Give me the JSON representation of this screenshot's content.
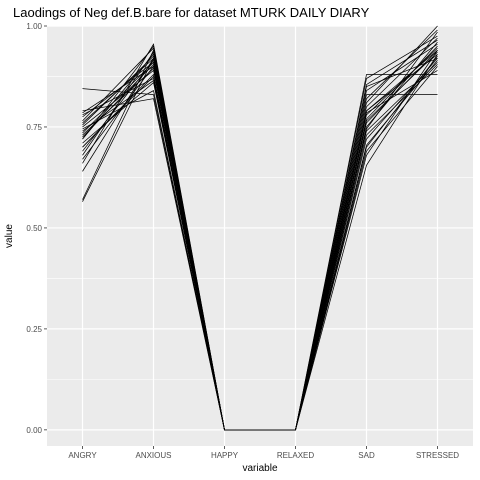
{
  "chart_data": {
    "type": "line",
    "title": "Laodings of Neg def.B.bare for dataset MTURK DAILY DIARY",
    "xlabel": "variable",
    "ylabel": "value",
    "categories": [
      "ANGRY",
      "ANXIOUS",
      "HAPPY",
      "RELAXED",
      "SAD",
      "STRESSED"
    ],
    "ylim": [
      -0.04,
      1.0
    ],
    "yticks": [
      0.0,
      0.25,
      0.5,
      0.75,
      1.0
    ],
    "ytick_labels": [
      "0.00",
      "0.25",
      "0.50",
      "0.75",
      "1.00"
    ],
    "grid": true,
    "legend": "none",
    "colors": {
      "panel": "#ebebeb",
      "grid": "#ffffff",
      "line": "#000000"
    },
    "series": [
      {
        "values": [
          0.845,
          0.83,
          0.0,
          0.0,
          0.88,
          0.88
        ]
      },
      {
        "values": [
          0.57,
          0.94,
          0.0,
          0.0,
          0.83,
          0.83
        ]
      },
      {
        "values": [
          0.565,
          0.92,
          0.0,
          0.0,
          0.79,
          0.94
        ]
      },
      {
        "values": [
          0.66,
          0.955,
          0.0,
          0.0,
          0.72,
          0.92
        ]
      },
      {
        "values": [
          0.67,
          0.9,
          0.0,
          0.0,
          0.69,
          0.9
        ]
      },
      {
        "values": [
          0.7,
          0.88,
          0.0,
          0.0,
          0.655,
          0.93
        ]
      },
      {
        "values": [
          0.72,
          0.93,
          0.0,
          0.0,
          0.75,
          0.96
        ]
      },
      {
        "values": [
          0.735,
          0.91,
          0.0,
          0.0,
          0.77,
          0.95
        ]
      },
      {
        "values": [
          0.75,
          0.89,
          0.0,
          0.0,
          0.8,
          0.97
        ]
      },
      {
        "values": [
          0.76,
          0.92,
          0.0,
          0.0,
          0.82,
          0.99
        ]
      },
      {
        "values": [
          0.78,
          0.87,
          0.0,
          0.0,
          0.85,
          0.92
        ]
      },
      {
        "values": [
          0.79,
          0.82,
          0.0,
          0.0,
          0.76,
          0.94
        ]
      },
      {
        "values": [
          0.745,
          0.84,
          0.0,
          0.0,
          0.74,
          0.91
        ]
      },
      {
        "values": [
          0.71,
          0.86,
          0.0,
          0.0,
          0.73,
          0.905
        ]
      },
      {
        "values": [
          0.68,
          0.935,
          0.0,
          0.0,
          0.78,
          0.945
        ]
      },
      {
        "values": [
          0.69,
          0.915,
          0.0,
          0.0,
          0.81,
          1.0
        ]
      },
      {
        "values": [
          0.725,
          0.905,
          0.0,
          0.0,
          0.7,
          0.925
        ]
      },
      {
        "values": [
          0.765,
          0.945,
          0.0,
          0.0,
          0.84,
          0.955
        ]
      },
      {
        "values": [
          0.73,
          0.895,
          0.0,
          0.0,
          0.765,
          0.935
        ]
      },
      {
        "values": [
          0.755,
          0.925,
          0.0,
          0.0,
          0.855,
          0.965
        ]
      },
      {
        "values": [
          0.7,
          0.875,
          0.0,
          0.0,
          0.705,
          0.915
        ]
      },
      {
        "values": [
          0.775,
          0.91,
          0.0,
          0.0,
          0.87,
          0.975
        ]
      },
      {
        "values": [
          0.74,
          0.865,
          0.0,
          0.0,
          0.785,
          0.89
        ]
      },
      {
        "values": [
          0.72,
          0.95,
          0.0,
          0.0,
          0.745,
          0.985
        ]
      },
      {
        "values": [
          0.64,
          0.92,
          0.0,
          0.0,
          0.68,
          0.94
        ]
      },
      {
        "values": [
          0.785,
          0.9,
          0.0,
          0.0,
          0.79,
          0.93
        ]
      }
    ]
  }
}
